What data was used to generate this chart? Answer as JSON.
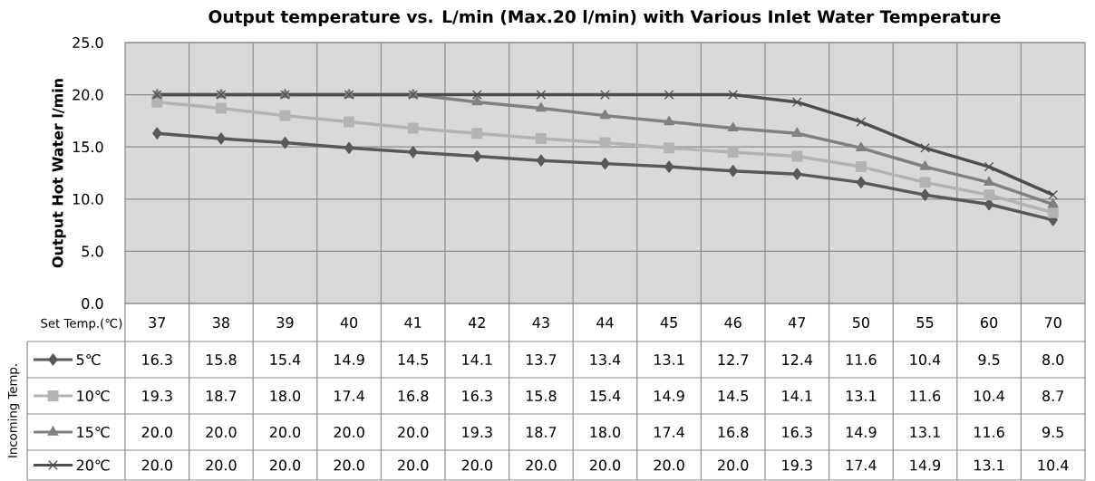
{
  "chart_data": {
    "type": "line",
    "title": "Output temperature vs. L/min (Max.20 l/min) with Various Inlet Water Temperature",
    "xlabel": "Set Temp.(℃)",
    "ylabel": "Output Hot Water l/min",
    "legend_title": "Incoming Temp.",
    "categories": [
      "37",
      "38",
      "39",
      "40",
      "41",
      "42",
      "43",
      "44",
      "45",
      "46",
      "47",
      "50",
      "55",
      "60",
      "70"
    ],
    "series": [
      {
        "name": "5℃",
        "color": "#595959",
        "marker": "diamond",
        "values": [
          16.3,
          15.8,
          15.4,
          14.9,
          14.5,
          14.1,
          13.7,
          13.4,
          13.1,
          12.7,
          12.4,
          11.6,
          10.4,
          9.5,
          8.0
        ],
        "value_labels": [
          "16.3",
          "15.8",
          "15.4",
          "14.9",
          "14.5",
          "14.1",
          "13.7",
          "13.4",
          "13.1",
          "12.7",
          "12.4",
          "11.6",
          "10.4",
          "9.5",
          "8.0"
        ]
      },
      {
        "name": "10℃",
        "color": "#b3b3b3",
        "marker": "square",
        "values": [
          19.3,
          18.7,
          18.0,
          17.4,
          16.8,
          16.3,
          15.8,
          15.4,
          14.9,
          14.5,
          14.1,
          13.1,
          11.6,
          10.4,
          8.7
        ],
        "value_labels": [
          "19.3",
          "18.7",
          "18.0",
          "17.4",
          "16.8",
          "16.3",
          "15.8",
          "15.4",
          "14.9",
          "14.5",
          "14.1",
          "13.1",
          "11.6",
          "10.4",
          "8.7"
        ]
      },
      {
        "name": "15℃",
        "color": "#808080",
        "marker": "triangle",
        "values": [
          20.0,
          20.0,
          20.0,
          20.0,
          20.0,
          19.3,
          18.7,
          18.0,
          17.4,
          16.8,
          16.3,
          14.9,
          13.1,
          11.6,
          9.5
        ],
        "value_labels": [
          "20.0",
          "20.0",
          "20.0",
          "20.0",
          "20.0",
          "19.3",
          "18.7",
          "18.0",
          "17.4",
          "16.8",
          "16.3",
          "14.9",
          "13.1",
          "11.6",
          "9.5"
        ]
      },
      {
        "name": "20℃",
        "color": "#4d4d4d",
        "marker": "cross",
        "values": [
          20.0,
          20.0,
          20.0,
          20.0,
          20.0,
          20.0,
          20.0,
          20.0,
          20.0,
          20.0,
          19.3,
          17.4,
          14.9,
          13.1,
          10.4
        ],
        "value_labels": [
          "20.0",
          "20.0",
          "20.0",
          "20.0",
          "20.0",
          "20.0",
          "20.0",
          "20.0",
          "20.0",
          "20.0",
          "19.3",
          "17.4",
          "14.9",
          "13.1",
          "10.4"
        ]
      }
    ],
    "ylim": [
      0,
      25
    ],
    "yticks": [
      {
        "value": 0,
        "label": "0.0"
      },
      {
        "value": 5,
        "label": "5.0"
      },
      {
        "value": 10,
        "label": "10.0"
      },
      {
        "value": 15,
        "label": "15.0"
      },
      {
        "value": 20,
        "label": "20.0"
      },
      {
        "value": 25,
        "label": "25.0"
      }
    ],
    "grid": true,
    "legend": "bottom",
    "line_style": "solid"
  }
}
